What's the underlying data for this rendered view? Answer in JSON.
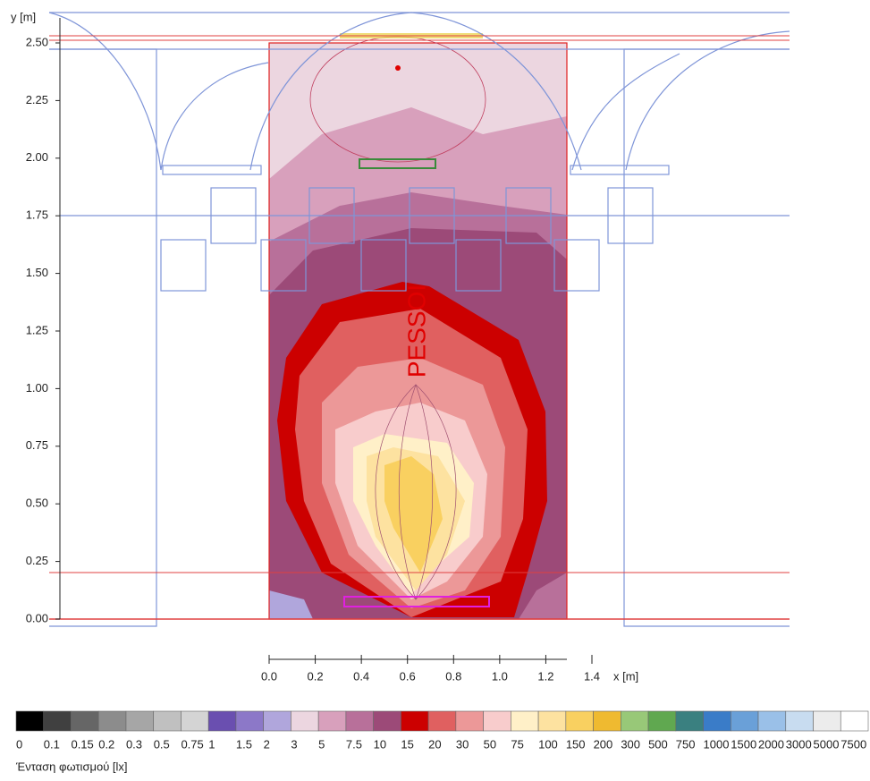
{
  "chart_data": {
    "type": "contour",
    "xlabel": "x [m]",
    "ylabel": "y [m]",
    "annotation": "PESSOI",
    "xlim": [
      0,
      1.4
    ],
    "ylim": [
      0,
      2.5
    ],
    "xticks": [
      {
        "value": 0,
        "label": "0.0"
      },
      0.2,
      0.4,
      0.6,
      0.8,
      {
        "value": 1,
        "label": "1.0"
      },
      1.2,
      1.4
    ],
    "yticks": [
      {
        "value": 0,
        "label": "0.00"
      },
      0.25,
      {
        "value": 0.5,
        "label": "0.50"
      },
      0.75,
      {
        "value": 1,
        "label": "1.00"
      },
      1.25,
      {
        "value": 1.5,
        "label": "1.50"
      },
      1.75,
      {
        "value": 2,
        "label": "2.00"
      },
      2.25,
      {
        "value": 2.5,
        "label": "2.50"
      }
    ],
    "colorbar": {
      "title": "Ένταση φωτισμού [lx]",
      "levels": [
        0,
        0.1,
        0.15,
        0.2,
        0.3,
        0.5,
        0.75,
        1,
        1.5,
        2,
        3,
        5,
        7.5,
        10,
        15,
        20,
        30,
        50,
        75,
        100,
        150,
        200,
        300,
        500,
        750,
        1000,
        1500,
        2000,
        3000,
        5000,
        7500
      ],
      "colors": [
        "#000000",
        "#404040",
        "#666666",
        "#8c8c8c",
        "#a6a6a6",
        "#c0c0c0",
        "#d4d4d4",
        "#6a4fb0",
        "#8c78c8",
        "#b0a6dc",
        "#ecd6e0",
        "#d8a0bc",
        "#b8709a",
        "#9c4a78",
        "#cc0000",
        "#e06060",
        "#ec9898",
        "#f8cccc",
        "#fff0c8",
        "#fde2a0",
        "#f9d060",
        "#efba30",
        "#98c878",
        "#60a850",
        "#3a8080",
        "#3a7cc8",
        "#6aa0d8",
        "#9ac0e8",
        "#c8dcf0",
        "#ececec",
        "#ffffff"
      ]
    }
  }
}
